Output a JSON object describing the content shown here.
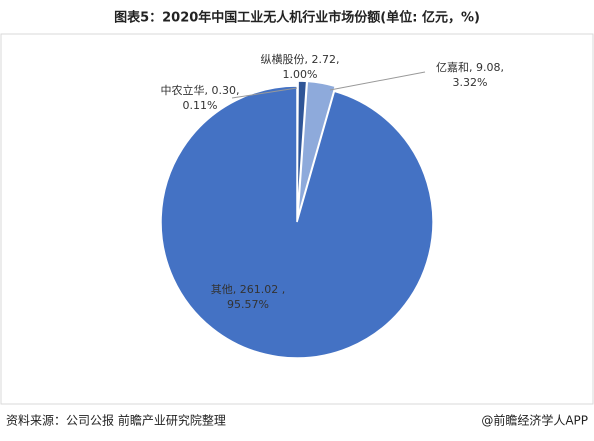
{
  "chart_data": {
    "type": "pie",
    "title": "图表5：2020年中国工业无人机行业市场份额(单位: 亿元，%)",
    "categories": [
      "中农立华",
      "纵横股份",
      "亿嘉和",
      "其他"
    ],
    "values": [
      0.3,
      2.72,
      9.08,
      261.02
    ],
    "value_labels": [
      ", 0.30,",
      ", 2.72,",
      ", 9.08,",
      ", 261.02 ,"
    ],
    "percent_values": [
      0.11,
      1.0,
      3.32,
      95.57
    ],
    "percent_labels": [
      "0.11%",
      "1.00%",
      "3.32%",
      "95.57%"
    ],
    "colors": [
      "#203864",
      "#2f5597",
      "#8eaadb",
      "#4472c4"
    ]
  },
  "footer": {
    "source": "资料来源：公司公报 前瞻产业研究院整理",
    "brand": "@前瞻经济学人APP"
  }
}
